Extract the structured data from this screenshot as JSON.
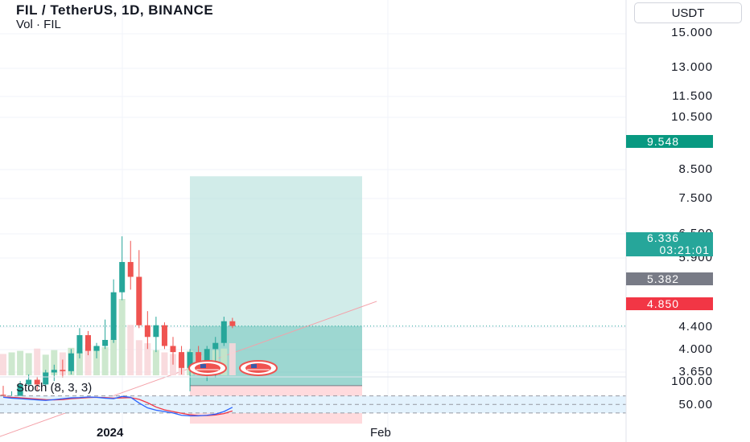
{
  "header": {
    "title": "FIL / TetherUS, 1D, BINANCE",
    "volume_label": "Vol · FIL",
    "stoch_label": "Stoch (8, 3, 3)"
  },
  "currency_button": "USDT",
  "price_axis": {
    "labels": [
      "15.000",
      "13.000",
      "11.500",
      "10.500",
      "8.500",
      "7.500",
      "6.500",
      "5.900",
      "4.400",
      "4.000",
      "3.650"
    ],
    "scale": "log"
  },
  "stoch_axis": {
    "labels": [
      "100.00",
      "50.00"
    ]
  },
  "tags": {
    "take_profit": "9.548",
    "current_price": "6.336",
    "countdown": "03:21:01",
    "entry": "5.382",
    "stop_loss": "4.850"
  },
  "time_axis": {
    "labels": [
      "2024",
      "Feb"
    ]
  },
  "colors": {
    "up": "#26a69a",
    "down": "#ef5350",
    "profit_zone": "#b2dfdb",
    "loss_zone": "#ffcdd2",
    "entry_tag": "#787b86",
    "stoch_k": "#2962ff",
    "stoch_d": "#f23645",
    "stoch_band": "#e3f2fd"
  },
  "events": [
    {
      "icon": "us-flag-icon"
    },
    {
      "icon": "us-flag-icon"
    }
  ],
  "chart_data": {
    "type": "candlestick",
    "x": [
      "2023-12-14",
      "2023-12-15",
      "2023-12-16",
      "2023-12-17",
      "2023-12-18",
      "2023-12-19",
      "2023-12-20",
      "2023-12-21",
      "2023-12-22",
      "2023-12-23",
      "2023-12-24",
      "2023-12-25",
      "2023-12-26",
      "2023-12-27",
      "2023-12-28",
      "2023-12-29",
      "2023-12-30",
      "2023-12-31",
      "2024-01-01",
      "2024-01-02",
      "2024-01-03",
      "2024-01-04",
      "2024-01-05",
      "2024-01-06",
      "2024-01-07",
      "2024-01-08",
      "2024-01-09",
      "2024-01-10"
    ],
    "series": [
      {
        "name": "FIL / TetherUS",
        "ohlc": [
          [
            5.25,
            5.38,
            5.05,
            5.18
          ],
          [
            5.18,
            5.3,
            5.12,
            5.22
          ],
          [
            5.22,
            5.45,
            5.15,
            5.4
          ],
          [
            5.4,
            5.55,
            5.3,
            5.47
          ],
          [
            5.47,
            5.52,
            5.3,
            5.4
          ],
          [
            5.4,
            5.62,
            5.35,
            5.58
          ],
          [
            5.58,
            5.7,
            5.45,
            5.62
          ],
          [
            5.62,
            5.78,
            5.5,
            5.6
          ],
          [
            5.6,
            5.95,
            5.55,
            5.88
          ],
          [
            5.88,
            6.3,
            5.8,
            6.18
          ],
          [
            6.18,
            6.25,
            5.85,
            5.92
          ],
          [
            5.92,
            6.05,
            5.8,
            6.0
          ],
          [
            6.0,
            6.45,
            5.95,
            6.1
          ],
          [
            6.1,
            7.2,
            6.05,
            6.95
          ],
          [
            6.95,
            8.1,
            6.8,
            7.55
          ],
          [
            7.55,
            8.0,
            7.0,
            7.25
          ],
          [
            7.25,
            7.8,
            6.3,
            6.35
          ],
          [
            6.35,
            6.6,
            5.95,
            6.15
          ],
          [
            6.15,
            6.5,
            5.9,
            6.35
          ],
          [
            6.35,
            6.4,
            5.95,
            6.0
          ],
          [
            6.0,
            6.15,
            5.7,
            5.9
          ],
          [
            5.9,
            6.0,
            5.55,
            5.65
          ],
          [
            5.65,
            5.95,
            5.3,
            5.9
          ],
          [
            5.9,
            6.0,
            5.55,
            5.7
          ],
          [
            5.7,
            6.0,
            5.45,
            5.95
          ],
          [
            5.95,
            6.15,
            5.5,
            6.05
          ],
          [
            6.05,
            6.5,
            6.0,
            6.42
          ],
          [
            6.42,
            6.48,
            6.3,
            6.336
          ]
        ]
      },
      {
        "name": "Vol · FIL",
        "values": [
          28,
          30,
          32,
          29,
          35,
          27,
          33,
          30,
          36,
          31,
          40,
          38,
          37,
          47,
          100,
          66,
          46,
          42,
          33,
          30,
          28,
          27,
          32,
          26,
          34,
          33,
          35,
          42
        ]
      }
    ],
    "stoch": {
      "k": [
        75,
        72,
        70,
        68,
        66,
        64,
        67,
        70,
        73,
        74,
        76,
        75,
        72,
        70,
        78,
        75,
        55,
        38,
        30,
        25,
        20,
        12,
        10,
        10,
        12,
        16,
        25,
        40
      ],
      "d": [
        76,
        75,
        73,
        71,
        69,
        67,
        66,
        67,
        70,
        72,
        74,
        75,
        74,
        72,
        73,
        74,
        68,
        56,
        41,
        31,
        25,
        19,
        14,
        11,
        11,
        13,
        18,
        27
      ],
      "levels": [
        80,
        20
      ]
    },
    "position": {
      "type": "long",
      "entry": 5.382,
      "take_profit": 9.548,
      "stop_loss": 4.85
    },
    "trendline": {
      "start": [
        "2023-12-12",
        4.62
      ],
      "end": [
        "2024-01-27",
        6.78
      ]
    },
    "y_range": [
      3.5,
      17.5
    ]
  }
}
